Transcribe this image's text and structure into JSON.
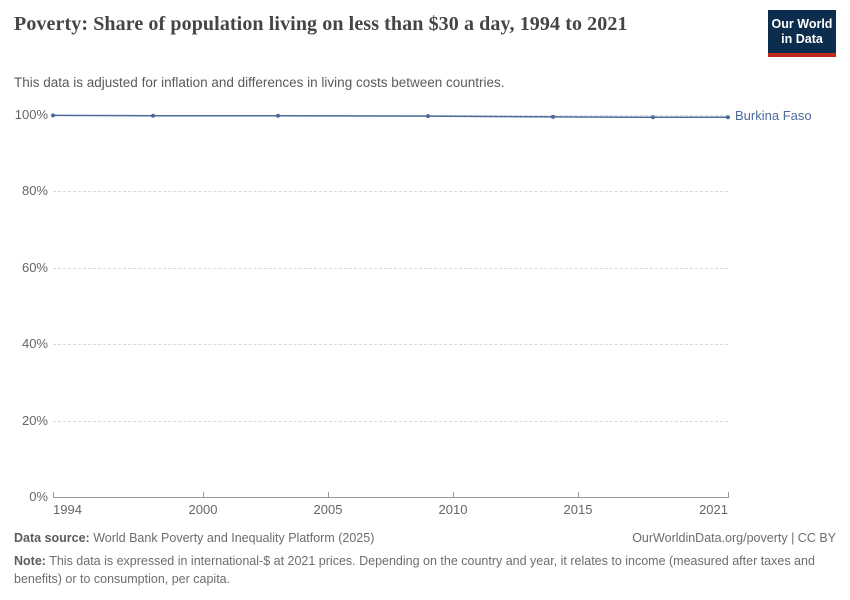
{
  "header": {
    "title": "Poverty: Share of population living on less than $30 a day, 1994 to 2021",
    "subtitle": "This data is adjusted for inflation and differences in living costs between countries.",
    "logo": {
      "line1": "Our World",
      "line2": "in Data"
    }
  },
  "chart_data": {
    "type": "line",
    "title": "Poverty: Share of population living on less than $30 a day, 1994 to 2021",
    "x": [
      1994,
      1998,
      2003,
      2009,
      2014,
      2018,
      2021
    ],
    "series": [
      {
        "name": "Burkina Faso",
        "color": "#4c6a9c",
        "values": [
          99.9,
          99.8,
          99.8,
          99.7,
          99.5,
          99.4,
          99.4
        ]
      }
    ],
    "xlabel": "",
    "ylabel": "",
    "xlim": [
      1994,
      2021
    ],
    "ylim": [
      0,
      100
    ],
    "xticks": [
      1994,
      2000,
      2005,
      2010,
      2015,
      2021
    ],
    "yticks": [
      0,
      20,
      40,
      60,
      80,
      100
    ],
    "ytick_suffix": "%",
    "grid": "horizontal-dashed",
    "legend_position": "end-of-line",
    "markers": true
  },
  "footer": {
    "source_label": "Data source:",
    "source_text": " World Bank Poverty and Inequality Platform (2025)",
    "rights": "OurWorldinData.org/poverty | CC BY",
    "note_label": "Note:",
    "note_text": " This data is expressed in international-$ at 2021 prices. Depending on the country and year, it relates to income (measured after taxes and benefits) or to consumption, per capita."
  },
  "colors": {
    "accent_line": "#4c6a9c",
    "logo_background": "#0d2d4e",
    "logo_underline": "#c5281c",
    "gridline": "#d9d9d9",
    "axis": "#9a9a9a",
    "tick_text": "#666666"
  }
}
